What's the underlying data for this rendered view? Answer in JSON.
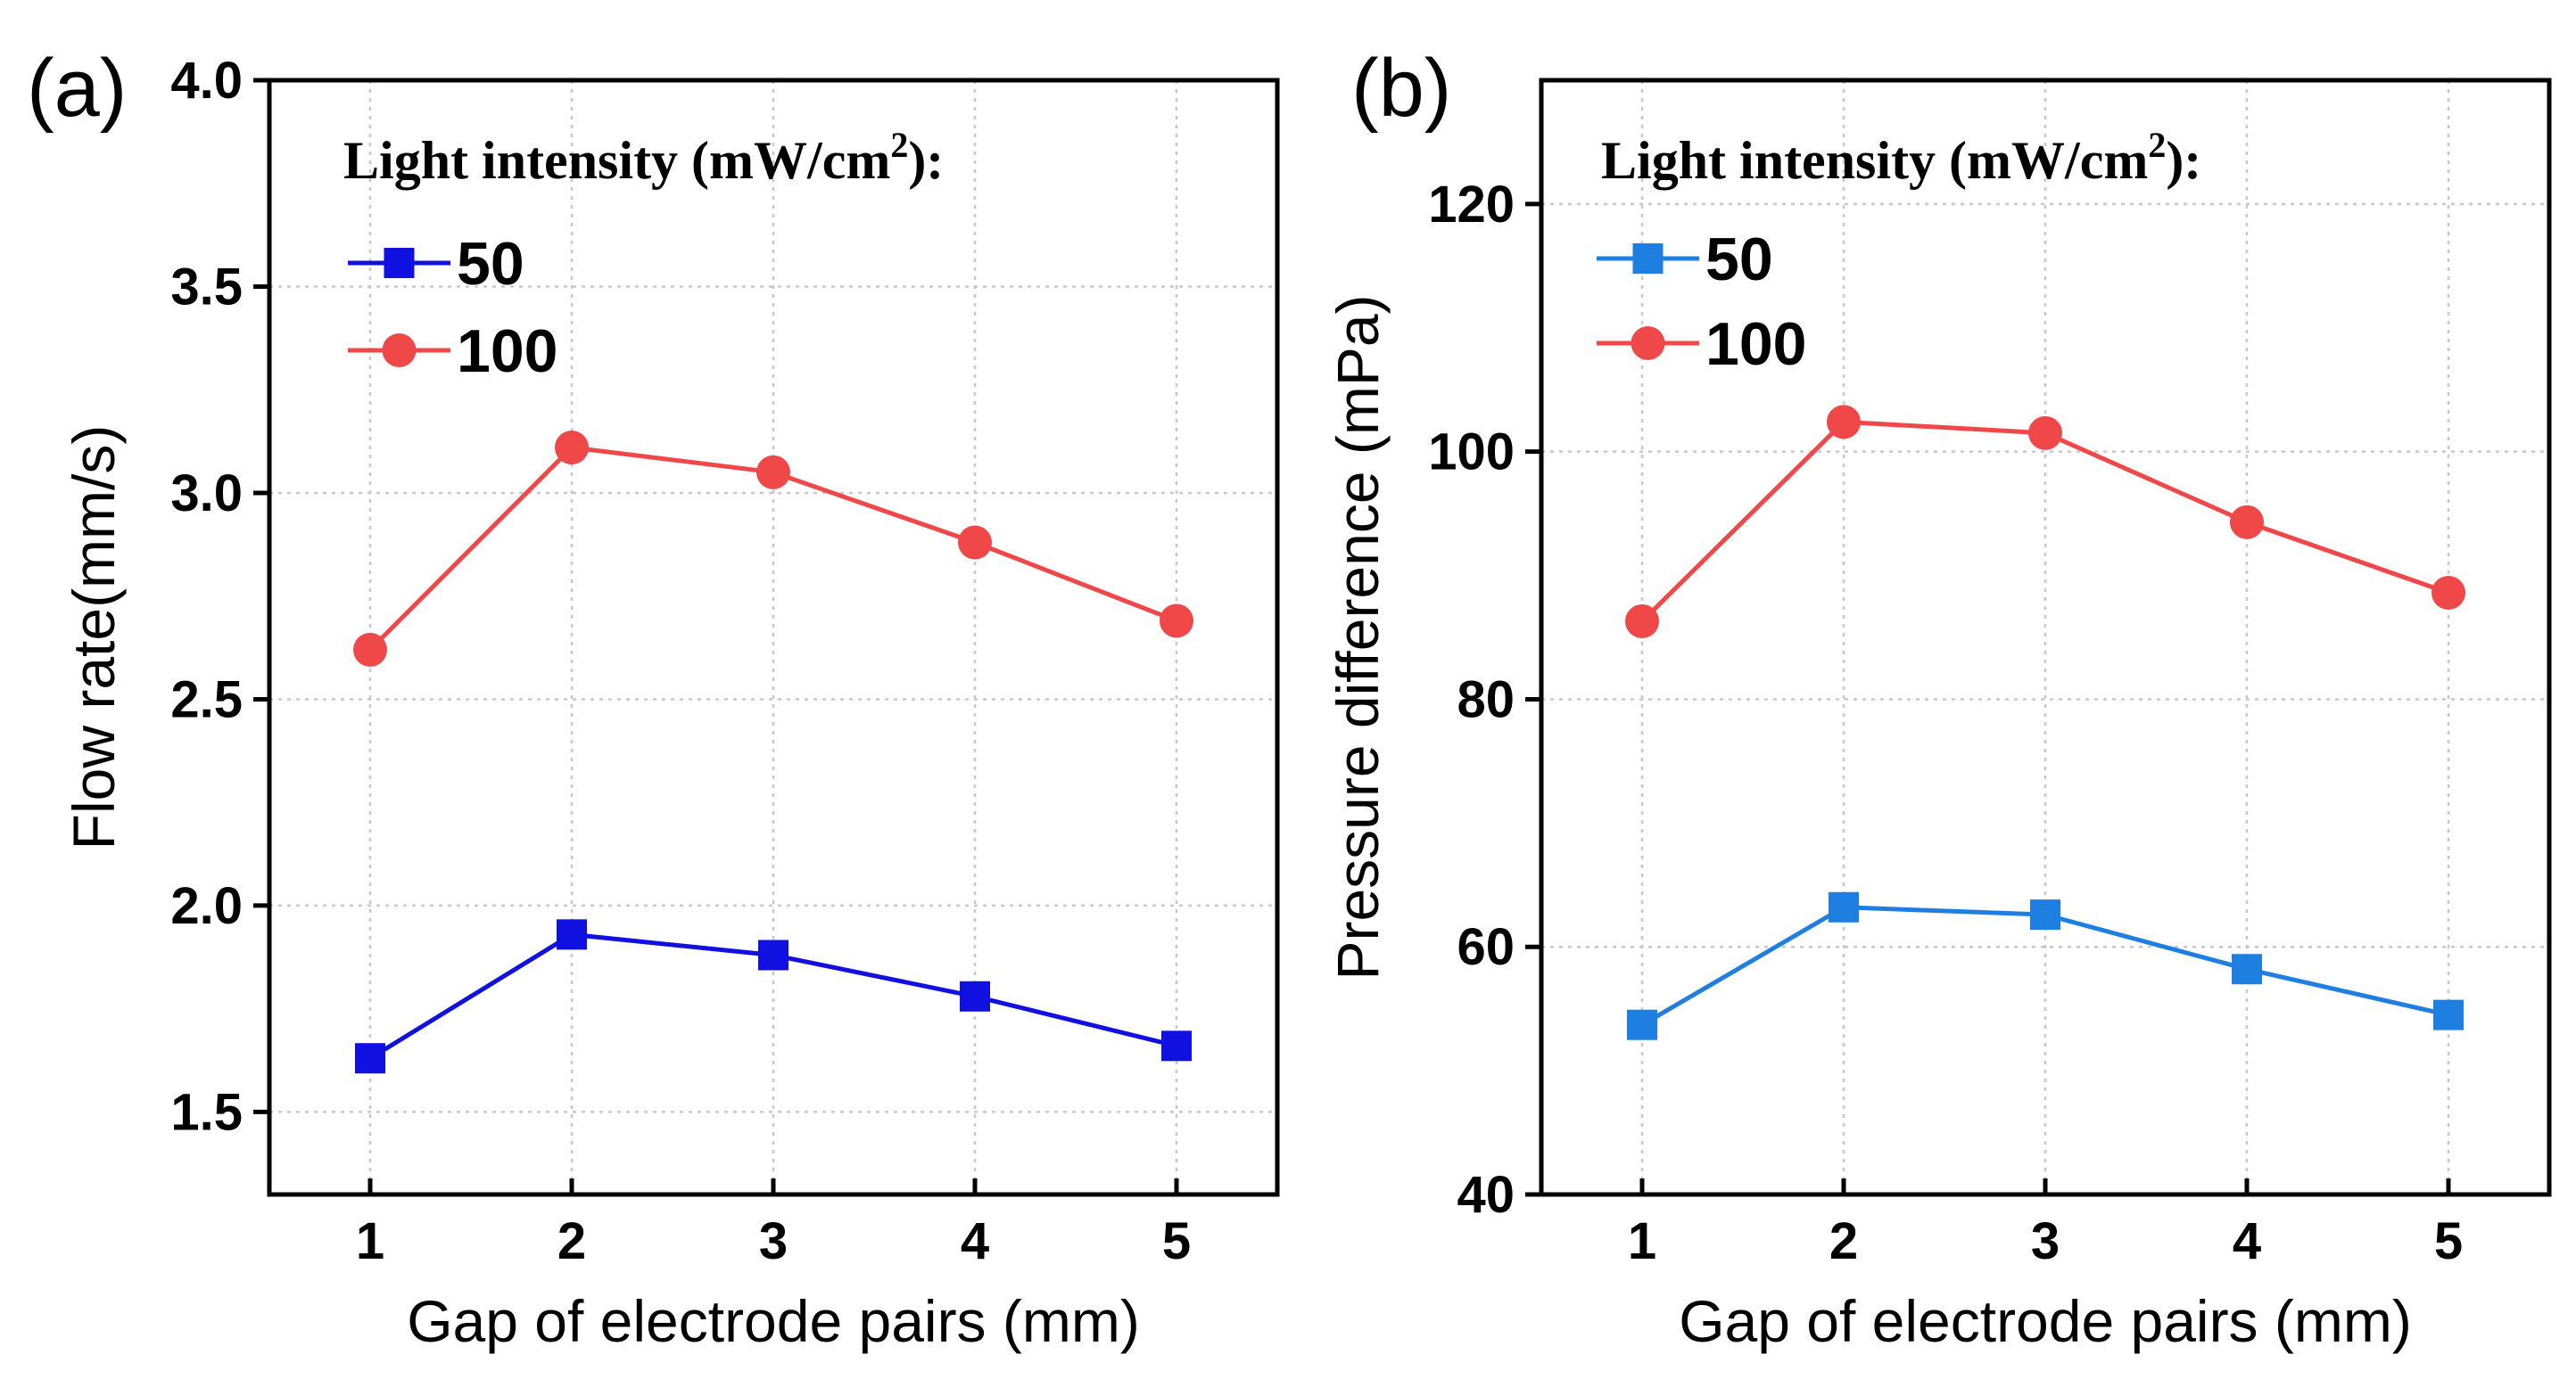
{
  "chart_data": [
    {
      "type": "line",
      "panel_label": "(a)",
      "title": "",
      "xlabel": "Gap of electrode pairs (mm)",
      "ylabel": "Flow rate(mm/s)",
      "x": [
        1,
        2,
        3,
        4,
        5
      ],
      "xticks": [
        "1",
        "2",
        "3",
        "4",
        "5"
      ],
      "xlim": [
        0.5,
        5.5
      ],
      "ylim": [
        1.3,
        4.0
      ],
      "yticks": [
        "1.5",
        "2.0",
        "2.5",
        "3.0",
        "3.5",
        "4.0"
      ],
      "ytick_values": [
        1.5,
        2.0,
        2.5,
        3.0,
        3.5,
        4.0
      ],
      "grid": true,
      "legend_title": "Light intensity (mW/cm",
      "legend_title_sup": "2",
      "legend_title_end": "):",
      "legend_position": "top-left",
      "series": [
        {
          "name": "50",
          "marker": "square",
          "color": "#1010e0",
          "values": [
            1.63,
            1.93,
            1.88,
            1.78,
            1.66
          ]
        },
        {
          "name": "100",
          "marker": "circle",
          "color": "#f04848",
          "values": [
            2.62,
            3.11,
            3.05,
            2.88,
            2.69
          ]
        }
      ]
    },
    {
      "type": "line",
      "panel_label": "(b)",
      "title": "",
      "xlabel": "Gap of electrode pairs (mm)",
      "ylabel": "Pressure difference (mPa)",
      "x": [
        1,
        2,
        3,
        4,
        5
      ],
      "xticks": [
        "1",
        "2",
        "3",
        "4",
        "5"
      ],
      "xlim": [
        0.5,
        5.5
      ],
      "ylim": [
        40,
        130
      ],
      "yticks": [
        "40",
        "60",
        "80",
        "100",
        "120"
      ],
      "ytick_values": [
        40,
        60,
        80,
        100,
        120
      ],
      "grid": true,
      "legend_title": "Light intensity (mW/cm",
      "legend_title_sup": "2",
      "legend_title_end": "):",
      "legend_position": "top-left",
      "series": [
        {
          "name": "50",
          "marker": "square",
          "color": "#1e7fe0",
          "values": [
            53.7,
            63.2,
            62.6,
            58.2,
            54.5
          ]
        },
        {
          "name": "100",
          "marker": "circle",
          "color": "#f04848",
          "values": [
            86.3,
            102.4,
            101.5,
            94.3,
            88.6
          ]
        }
      ]
    }
  ]
}
